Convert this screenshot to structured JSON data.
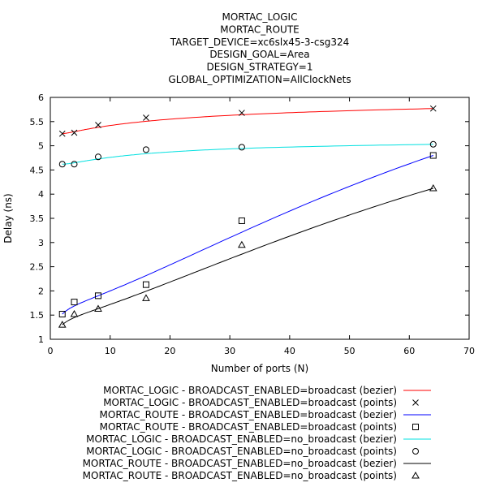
{
  "chart_data": {
    "type": "line",
    "title_lines": [
      "MORTAC_LOGIC",
      "MORTAC_ROUTE",
      "TARGET_DEVICE=xc6slx45-3-csg324",
      "DESIGN_GOAL=Area",
      "DESIGN_STRATEGY=1",
      "GLOBAL_OPTIMIZATION=AllClockNets"
    ],
    "xlabel": "Number of ports (N)",
    "ylabel": "Delay (ns)",
    "xlim": [
      0,
      70
    ],
    "ylim": [
      1,
      6
    ],
    "xticks": [
      0,
      10,
      20,
      30,
      40,
      50,
      60,
      70
    ],
    "yticks": [
      1,
      1.5,
      2,
      2.5,
      3,
      3.5,
      4,
      4.5,
      5,
      5.5,
      6
    ],
    "grid": false,
    "legend_position": "bottom",
    "series": [
      {
        "label": "MORTAC_LOGIC -  BROADCAST_ENABLED=broadcast",
        "color": "#ff0000",
        "marker": "cross",
        "x": [
          2,
          4,
          8,
          16,
          32,
          64
        ],
        "y": [
          5.25,
          5.27,
          5.43,
          5.58,
          5.68,
          5.77
        ]
      },
      {
        "label": "MORTAC_ROUTE -  BROADCAST_ENABLED=broadcast",
        "color": "#0000ff",
        "marker": "square",
        "x": [
          2,
          4,
          8,
          16,
          32,
          64
        ],
        "y": [
          1.52,
          1.77,
          1.9,
          2.13,
          3.45,
          4.8
        ]
      },
      {
        "label": "MORTAC_LOGIC -  BROADCAST_ENABLED=no_broadcast",
        "color": "#00e0e0",
        "marker": "circle",
        "x": [
          2,
          4,
          8,
          16,
          32,
          64
        ],
        "y": [
          4.62,
          4.62,
          4.77,
          4.92,
          4.97,
          5.03
        ]
      },
      {
        "label": "MORTAC_ROUTE -  BROADCAST_ENABLED=no_broadcast",
        "color": "#000000",
        "marker": "triangle",
        "x": [
          2,
          4,
          8,
          16,
          32,
          64
        ],
        "y": [
          1.3,
          1.52,
          1.63,
          1.85,
          2.95,
          4.12
        ]
      }
    ],
    "legend": [
      {
        "label": "MORTAC_LOGIC -  BROADCAST_ENABLED=broadcast (bezier)",
        "series": 0,
        "kind": "line"
      },
      {
        "label": "MORTAC_LOGIC -  BROADCAST_ENABLED=broadcast (points)",
        "series": 0,
        "kind": "points"
      },
      {
        "label": "MORTAC_ROUTE -  BROADCAST_ENABLED=broadcast (bezier)",
        "series": 1,
        "kind": "line"
      },
      {
        "label": "MORTAC_ROUTE -  BROADCAST_ENABLED=broadcast (points)",
        "series": 1,
        "kind": "points"
      },
      {
        "label": "MORTAC_LOGIC -  BROADCAST_ENABLED=no_broadcast (bezier)",
        "series": 2,
        "kind": "line"
      },
      {
        "label": "MORTAC_LOGIC -  BROADCAST_ENABLED=no_broadcast (points)",
        "series": 2,
        "kind": "points"
      },
      {
        "label": "MORTAC_ROUTE -  BROADCAST_ENABLED=no_broadcast (bezier)",
        "series": 3,
        "kind": "line"
      },
      {
        "label": "MORTAC_ROUTE -  BROADCAST_ENABLED=no_broadcast (points)",
        "series": 3,
        "kind": "points"
      }
    ]
  }
}
